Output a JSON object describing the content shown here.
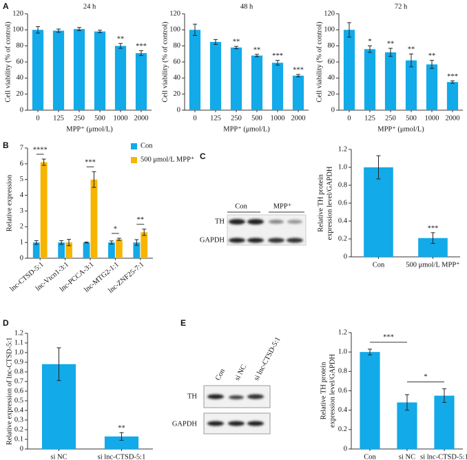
{
  "panel_labels": [
    "A",
    "B",
    "C",
    "D",
    "E"
  ],
  "blots": {
    "C": {
      "lanes": [
        "Con",
        "MPP⁺"
      ],
      "rows": [
        "TH",
        "GAPDH"
      ]
    },
    "E": {
      "lanes": [
        "Con",
        "si NC",
        "si lnc-CTSD-5:1"
      ],
      "rows": [
        "TH",
        "GAPDH"
      ]
    }
  },
  "chart_data": [
    {
      "type": "bar",
      "title": "24 h",
      "categories": [
        "0",
        "125",
        "250",
        "500",
        "1000",
        "2000"
      ],
      "series": [
        {
          "color": "#12aae8",
          "values": [
            100,
            99,
            101,
            98,
            80,
            71
          ],
          "errors": [
            4,
            2,
            2,
            1.5,
            3,
            3
          ],
          "significance": [
            null,
            null,
            null,
            null,
            "**",
            "***"
          ]
        }
      ],
      "xlabel": "MPP⁺ (μmol/L)",
      "ylabel": [
        "Cell viability (% of control)"
      ],
      "ylim": [
        0,
        120
      ],
      "yticks": [
        0,
        20,
        40,
        60,
        80,
        100,
        120
      ]
    },
    {
      "type": "bar",
      "title": "48 h",
      "categories": [
        "0",
        "125",
        "250",
        "500",
        "1000",
        "2000"
      ],
      "series": [
        {
          "color": "#12aae8",
          "values": [
            100,
            85,
            78,
            68,
            59,
            43
          ],
          "errors": [
            7,
            3,
            1.5,
            1.5,
            3,
            1.5
          ],
          "significance": [
            null,
            null,
            "**",
            "**",
            "***",
            "***"
          ]
        }
      ],
      "xlabel": "MPP⁺ (μmol/L)",
      "ylabel": [
        "Cell viability (% of control)"
      ],
      "ylim": [
        0,
        120
      ],
      "yticks": [
        0,
        20,
        40,
        60,
        80,
        100,
        120
      ]
    },
    {
      "type": "bar",
      "title": "72 h",
      "categories": [
        "0",
        "125",
        "250",
        "500",
        "1000",
        "2000"
      ],
      "series": [
        {
          "color": "#12aae8",
          "values": [
            100,
            76,
            72,
            62,
            57,
            35
          ],
          "errors": [
            9,
            4,
            5,
            8,
            5,
            1.5
          ],
          "significance": [
            null,
            "*",
            "**",
            "**",
            "**",
            "***"
          ]
        }
      ],
      "xlabel": "MPP⁺ (μmol/L)",
      "ylabel": [
        "Cell viability (% of control)"
      ],
      "ylim": [
        0,
        120
      ],
      "yticks": [
        0,
        20,
        40,
        60,
        80,
        100,
        120
      ]
    },
    {
      "type": "bar",
      "categories": [
        "lnc-CTSD-5:1",
        "lnc-Vtcn1-3:1",
        "lnc-PCCA-3:1",
        "lnc-MTG2-1:1",
        "lnc-ZNF25-7:1"
      ],
      "series": [
        {
          "name": "Con",
          "color": "#12aae8",
          "values": [
            1,
            1,
            1,
            1,
            1
          ],
          "errors": [
            0.12,
            0.12,
            0.03,
            0.1,
            0.18
          ]
        },
        {
          "name": "500 μmol/L MPP⁺",
          "color": "#f7b500",
          "values": [
            6.1,
            1.0,
            5.0,
            1.2,
            1.65
          ],
          "errors": [
            0.2,
            0.2,
            0.5,
            0.07,
            0.2
          ]
        }
      ],
      "significance": [
        "****",
        null,
        "***",
        "*",
        "**"
      ],
      "ylabel": [
        "Relative expression"
      ],
      "ylim": [
        0,
        7
      ],
      "yticks": [
        0,
        1,
        2,
        3,
        4,
        5,
        6,
        7
      ],
      "legend": "top-right"
    },
    {
      "type": "bar",
      "categories": [
        "Con",
        "500 μmol/L MPP⁺"
      ],
      "series": [
        {
          "color": "#12aae8",
          "values": [
            1.0,
            0.21
          ],
          "errors": [
            0.13,
            0.06
          ],
          "significance": [
            null,
            "***"
          ]
        }
      ],
      "ylabel": [
        "Relative TH protein",
        "expression level/GAPDH"
      ],
      "ylim": [
        0,
        1.2
      ],
      "yticks": [
        0,
        0.2,
        0.4,
        0.6,
        0.8,
        {
          "value": 1,
          "label": "1.0"
        },
        1.2
      ]
    },
    {
      "type": "bar",
      "categories": [
        "si NC",
        "si lnc-CTSD-5:1"
      ],
      "series": [
        {
          "color": "#12aae8",
          "values": [
            0.88,
            0.13
          ],
          "errors": [
            0.17,
            0.04
          ],
          "significance": [
            null,
            "**"
          ]
        }
      ],
      "ylabel": [
        "Relative expression of lnc-CTSD-5:1"
      ],
      "ylim": [
        0,
        1.2
      ],
      "yticks": [
        0,
        0.1,
        0.2,
        0.3,
        0.4,
        0.5,
        0.6,
        0.7,
        0.8,
        0.9,
        {
          "value": 1,
          "label": "1.0"
        },
        1.1,
        1.2
      ]
    },
    {
      "type": "bar",
      "categories": [
        "Con",
        "si NC",
        "si lnc-CTSD-5:1"
      ],
      "series": [
        {
          "color": "#12aae8",
          "values": [
            1.0,
            0.48,
            0.55
          ],
          "errors": [
            0.03,
            0.08,
            0.07
          ]
        }
      ],
      "comparisons": [
        {
          "categories": [
            "Con",
            "si NC"
          ],
          "label": "***"
        },
        {
          "categories": [
            "si NC",
            "si lnc-CTSD-5:1"
          ],
          "label": "*"
        }
      ],
      "ylabel": [
        "Relative TH protein",
        "expression level/GAPDH"
      ],
      "ylim": [
        0,
        1.2
      ],
      "yticks": [
        0,
        0.2,
        0.4,
        0.6,
        0.8,
        {
          "value": 1,
          "label": "1.0"
        },
        1.2
      ]
    }
  ]
}
